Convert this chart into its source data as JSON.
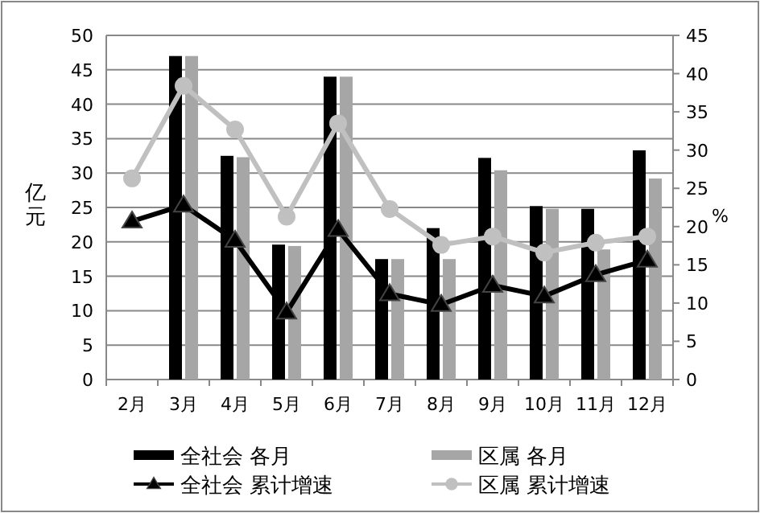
{
  "chart_data": {
    "type": "bar",
    "categories": [
      "2月",
      "3月",
      "4月",
      "5月",
      "6月",
      "7月",
      "8月",
      "9月",
      "10月",
      "11月",
      "12月"
    ],
    "ylabel": "亿元",
    "y2label": "%",
    "ylim": [
      0,
      50
    ],
    "yticks": [
      0,
      5,
      10,
      15,
      20,
      25,
      30,
      35,
      40,
      45,
      50
    ],
    "y2lim": [
      0,
      45
    ],
    "y2ticks": [
      0,
      5,
      10,
      15,
      20,
      25,
      30,
      35,
      40,
      45
    ],
    "grid": "y",
    "legend": "bottom",
    "series": [
      {
        "name": "全社会 各月",
        "color": "#000000",
        "values": [
          null,
          47,
          32.5,
          19.6,
          44,
          17.5,
          22,
          32.2,
          25.2,
          24.8,
          33.3
        ]
      },
      {
        "name": "区属 各月",
        "color": "#a6a6a6",
        "values": [
          null,
          47,
          32.3,
          19.4,
          44,
          17.5,
          17.5,
          30.4,
          24.8,
          18.9,
          29.2
        ]
      },
      {
        "name": "全社会 累计增速",
        "type": "line",
        "axis": "y2",
        "marker": "triangle",
        "color": "#000000",
        "values": [
          20.7,
          22.8,
          18.2,
          8.8,
          19.6,
          11.2,
          9.8,
          12.3,
          10.9,
          13.7,
          15.6
        ]
      },
      {
        "name": "区属 累计增速",
        "type": "line",
        "axis": "y2",
        "marker": "circle",
        "color": "#c0c0c0",
        "values": [
          26.3,
          38.4,
          32.7,
          21.3,
          33.5,
          22.3,
          17.6,
          18.7,
          16.6,
          17.9,
          18.7
        ]
      }
    ]
  }
}
